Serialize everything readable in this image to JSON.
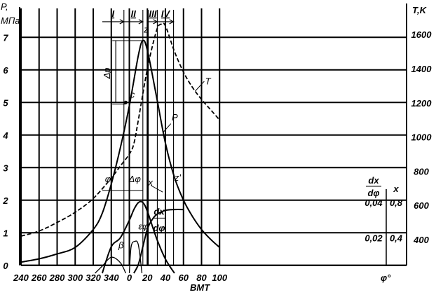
{
  "chart_data": {
    "type": "line",
    "x_axis": {
      "label": "φ°",
      "range": [
        240,
        100
      ],
      "ticks": [
        240,
        260,
        280,
        300,
        320,
        340,
        0,
        20,
        40,
        60,
        80,
        100
      ],
      "tdc_label": "ВМТ"
    },
    "y_left": {
      "label_line1": "P,",
      "label_line2": "МПа",
      "range": [
        0,
        7.5
      ],
      "ticks": [
        0,
        1,
        2,
        3,
        4,
        5,
        6,
        7
      ]
    },
    "y_right_T": {
      "label": "T,K",
      "range": [
        400,
        1700
      ],
      "ticks": [
        400,
        600,
        800,
        1000,
        1200,
        1400,
        1600
      ]
    },
    "y_right_x": {
      "label": "x",
      "range": [
        0,
        1
      ],
      "ticks": [
        "0,4",
        "0,8"
      ],
      "ticks_values": [
        0.4,
        0.8
      ]
    },
    "y_right_dxdphi": {
      "label_num": "dx",
      "label_den": "dφ",
      "ticks": [
        "0,02",
        "0,04"
      ],
      "ticks_values": [
        0.02,
        0.04
      ]
    },
    "phases": [
      "I",
      "II",
      "III",
      "IV"
    ],
    "annotations": {
      "delta_p": "Δp",
      "delta_phi": "Δφ",
      "phi_i": "φᵢ",
      "point_c": "c",
      "point_z": "z",
      "point_z_prime": "z'",
      "beta": "β",
      "eps_phi": "εφ",
      "dxdphi_num": "dx",
      "dxdphi_den": "dφ"
    },
    "series": [
      {
        "name": "P",
        "unit": "МПа",
        "x": [
          -120,
          -100,
          -80,
          -60,
          -40,
          -30,
          -20,
          -10,
          0,
          10,
          15,
          20,
          30,
          40,
          50,
          60,
          70,
          80,
          90,
          100
        ],
        "y": [
          0.1,
          0.2,
          0.35,
          0.55,
          1.1,
          1.6,
          2.5,
          3.6,
          4.9,
          6.45,
          6.9,
          6.6,
          5.2,
          3.75,
          2.7,
          2.0,
          1.5,
          1.1,
          0.8,
          0.55
        ]
      },
      {
        "name": "T",
        "unit": "K",
        "x": [
          -120,
          -100,
          -80,
          -60,
          -40,
          -20,
          -10,
          0,
          5,
          10,
          20,
          30,
          35,
          40,
          50,
          60,
          70,
          80,
          90,
          100
        ],
        "y": [
          420,
          450,
          500,
          560,
          640,
          760,
          830,
          900,
          960,
          1100,
          1400,
          1620,
          1660,
          1650,
          1500,
          1380,
          1290,
          1220,
          1160,
          1100
        ]
      },
      {
        "name": "x",
        "x": [
          5,
          10,
          15,
          20,
          25,
          30,
          40,
          50,
          60
        ],
        "y": [
          0.0,
          0.1,
          0.3,
          0.5,
          0.6,
          0.66,
          0.71,
          0.72,
          0.72
        ]
      },
      {
        "name": "dx/dφ",
        "x": [
          -30,
          -20,
          -10,
          0,
          5,
          10,
          15,
          20,
          30,
          40,
          50
        ],
        "y": [
          0.0,
          0.015,
          0.02,
          0.03,
          0.036,
          0.04,
          0.04,
          0.035,
          0.02,
          0.008,
          0.0
        ]
      }
    ],
    "legend": "none"
  }
}
